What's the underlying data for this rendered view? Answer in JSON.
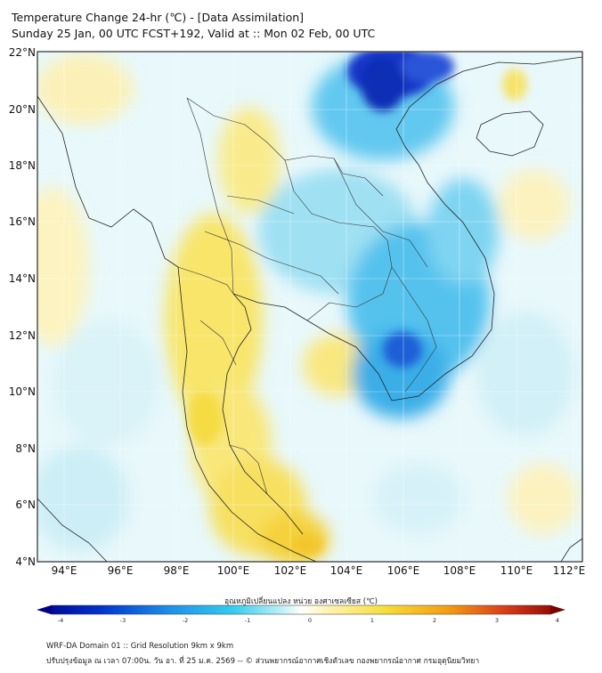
{
  "header": {
    "title": "Temperature Change 24-hr (℃) - [Data Assimilation]",
    "subtitle": "Sunday 25 Jan, 00 UTC FCST+192, Valid at :: Mon 02 Feb, 00 UTC"
  },
  "map": {
    "lat_labels": [
      "22°N",
      "20°N",
      "18°N",
      "16°N",
      "14°N",
      "12°N",
      "10°N",
      "8°N",
      "6°N",
      "4°N"
    ],
    "lon_labels": [
      "94°E",
      "96°E",
      "98°E",
      "100°E",
      "102°E",
      "104°E",
      "106°E",
      "108°E",
      "110°E",
      "112°E"
    ]
  },
  "colorbar": {
    "title": "อุณหภูมิเปลี่ยนแปลง หน่วย องศาเซลเซียส (℃)",
    "ticks": [
      "-4",
      "-3",
      "-2",
      "-1",
      "0",
      "1",
      "2",
      "3",
      "4"
    ],
    "colors": [
      "#00008b",
      "#0033cc",
      "#1f8fe8",
      "#33ccee",
      "#c8f3f7",
      "#ffffff",
      "#fdf3b4",
      "#f6de3c",
      "#f39c12",
      "#d83a1a",
      "#800000"
    ]
  },
  "footer": {
    "line1": "WRF-DA Domain 01 :: Grid Resolution 9km x 9km",
    "line2": "ปรับปรุงข้อมูล ณ เวลา 07:00น. วัน อา. ที่ 25 ม.ค. 2569 -- © ส่วนพยากรณ์อากาศเชิงตัวเลข กองพยากรณ์อากาศ กรมอุตุนิยมวิทยา"
  }
}
